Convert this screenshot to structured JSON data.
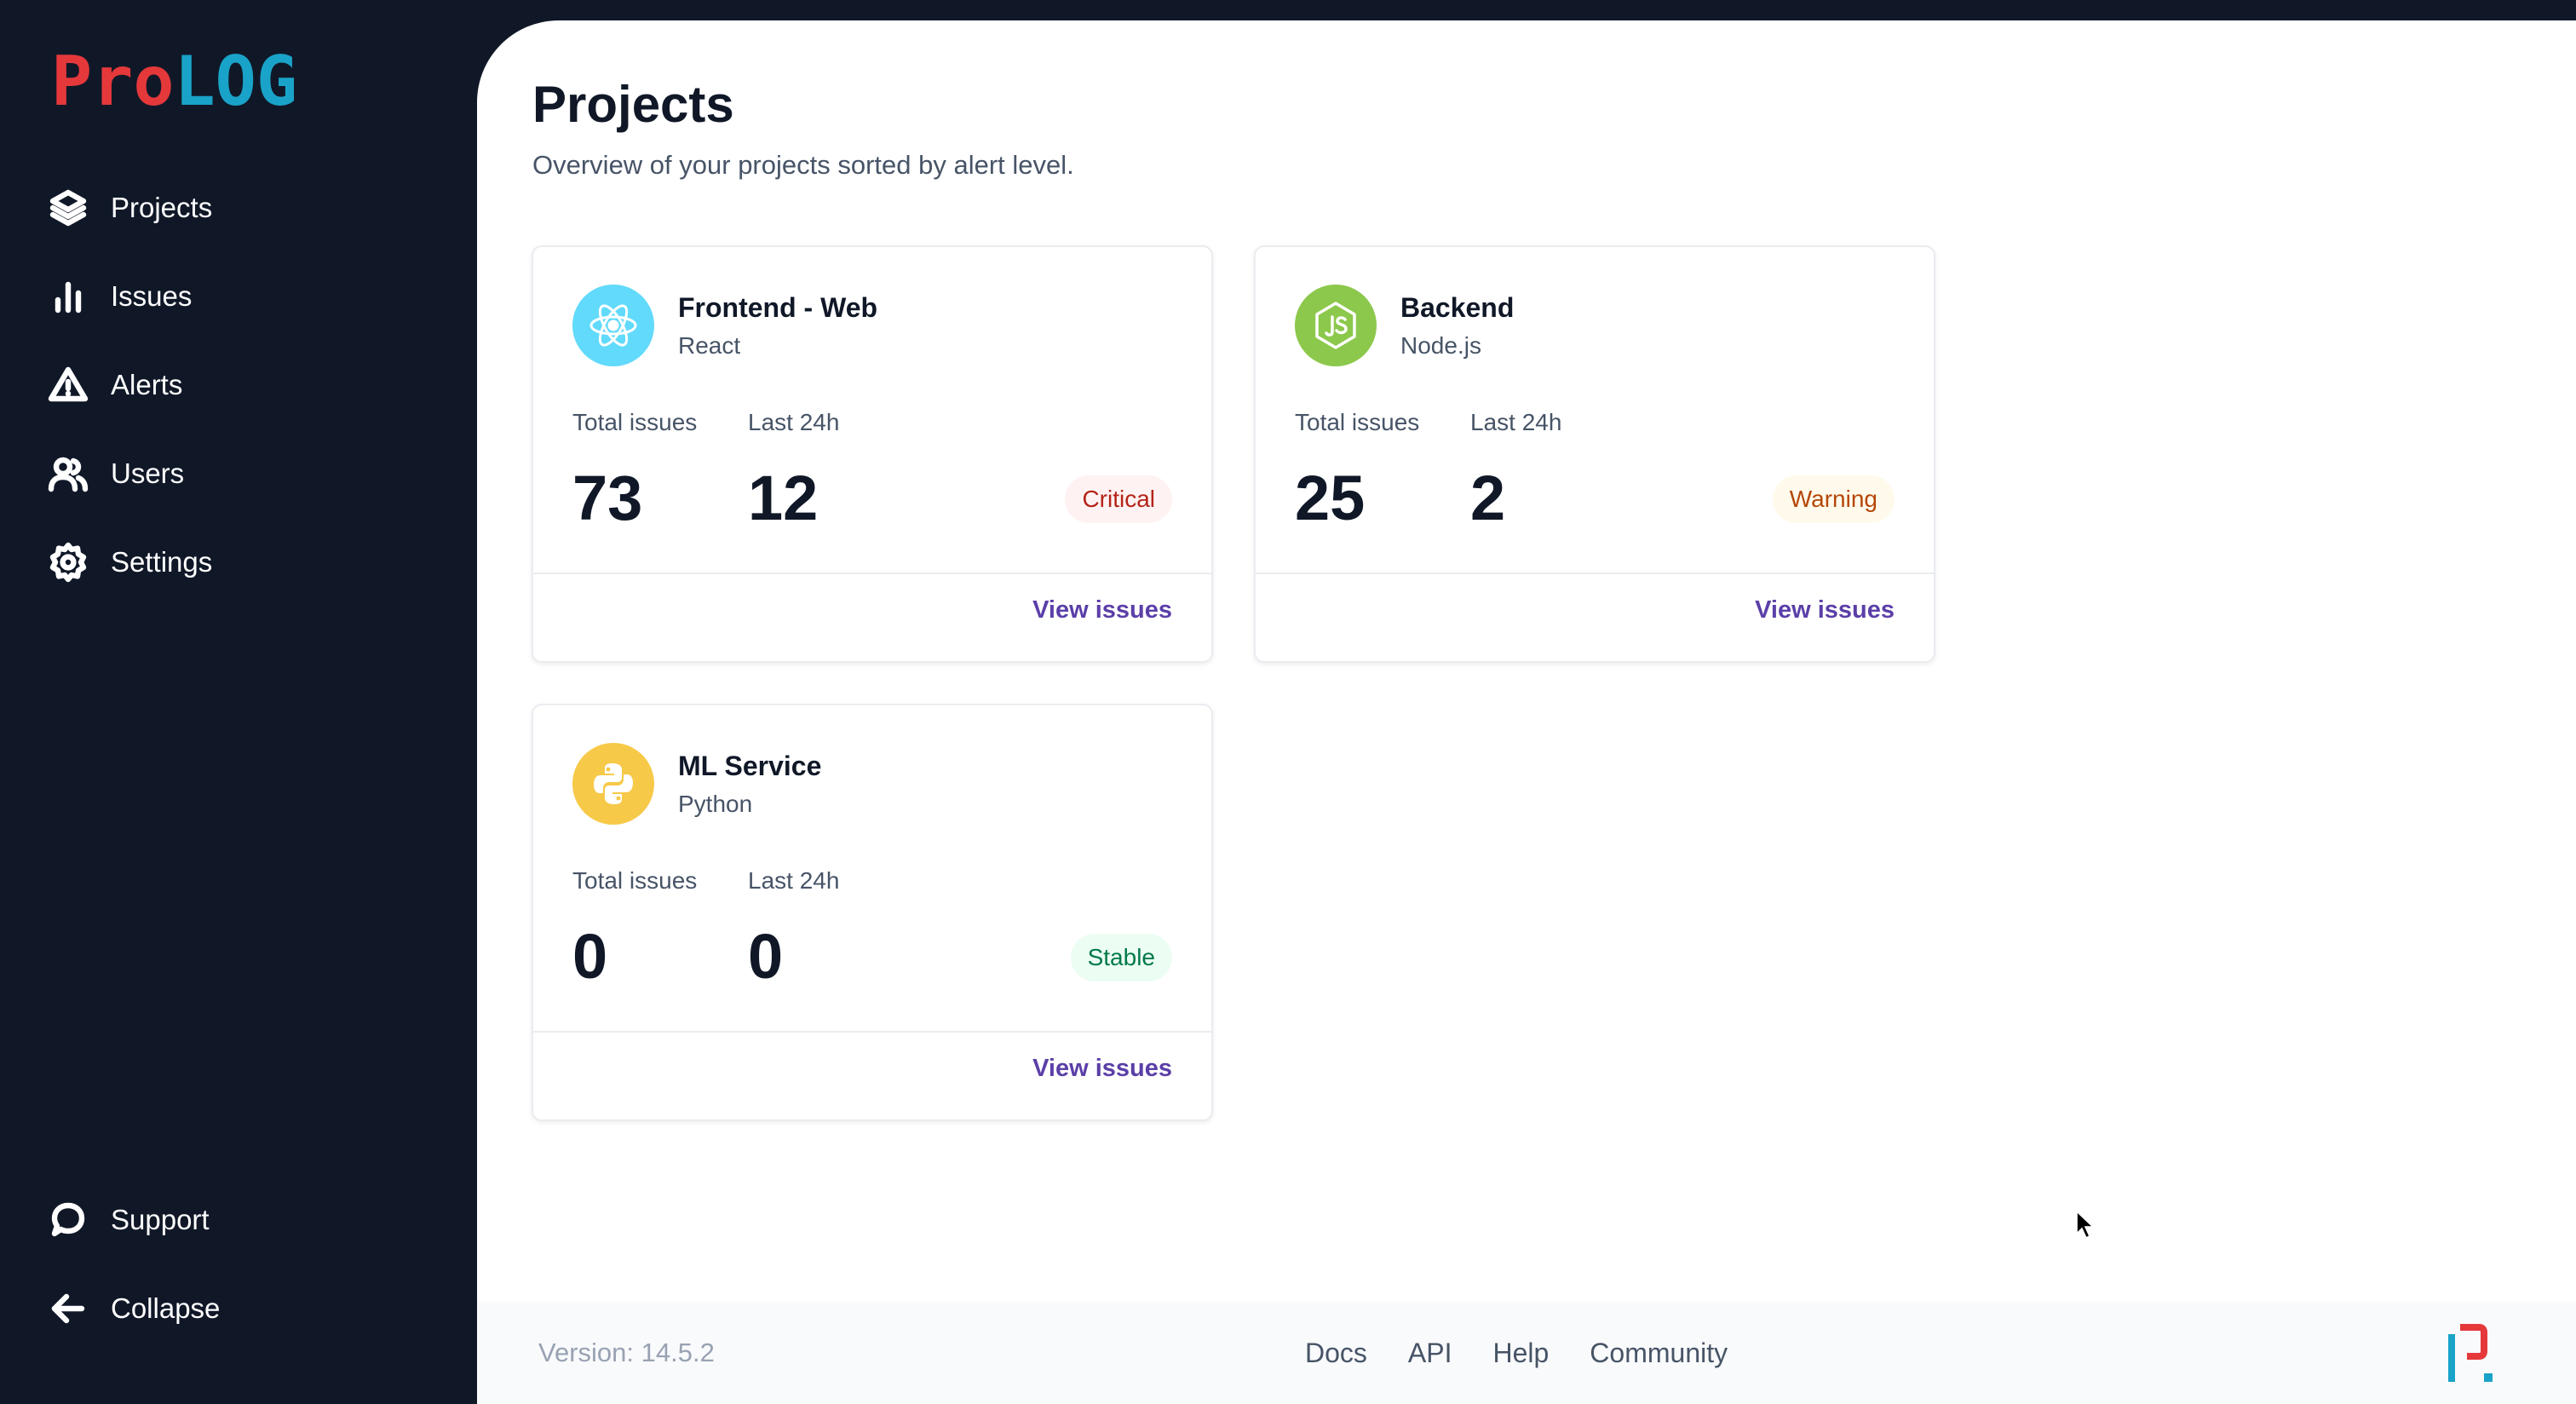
{
  "brand": {
    "logo_part1": "Pro",
    "logo_part2": "LOG",
    "color_red": "#e5383b",
    "color_blue": "#1aa3c8"
  },
  "sidebar": {
    "items": [
      {
        "label": "Projects",
        "icon": "layers-icon"
      },
      {
        "label": "Issues",
        "icon": "bar-chart-icon"
      },
      {
        "label": "Alerts",
        "icon": "alert-triangle-icon"
      },
      {
        "label": "Users",
        "icon": "users-icon"
      },
      {
        "label": "Settings",
        "icon": "gear-icon"
      }
    ],
    "bottom_items": [
      {
        "label": "Support",
        "icon": "message-circle-icon"
      },
      {
        "label": "Collapse",
        "icon": "arrow-left-icon"
      }
    ]
  },
  "page": {
    "title": "Projects",
    "subtitle": "Overview of your projects sorted by alert level."
  },
  "stat_labels": {
    "total": "Total issues",
    "last24": "Last 24h"
  },
  "projects": [
    {
      "name": "Frontend - Web",
      "tech": "React",
      "icon": "react-icon",
      "icon_bg": "#61dafb",
      "total": "73",
      "last24": "12",
      "status": "Critical",
      "link": "View issues"
    },
    {
      "name": "Backend",
      "tech": "Node.js",
      "icon": "nodejs-icon",
      "icon_bg": "#8cc84b",
      "total": "25",
      "last24": "2",
      "status": "Warning",
      "link": "View issues"
    },
    {
      "name": "ML Service",
      "tech": "Python",
      "icon": "python-icon",
      "icon_bg": "#f7c948",
      "total": "0",
      "last24": "0",
      "status": "Stable",
      "link": "View issues"
    }
  ],
  "footer": {
    "version": "Version: 14.5.2",
    "links": [
      "Docs",
      "API",
      "Help",
      "Community"
    ]
  }
}
